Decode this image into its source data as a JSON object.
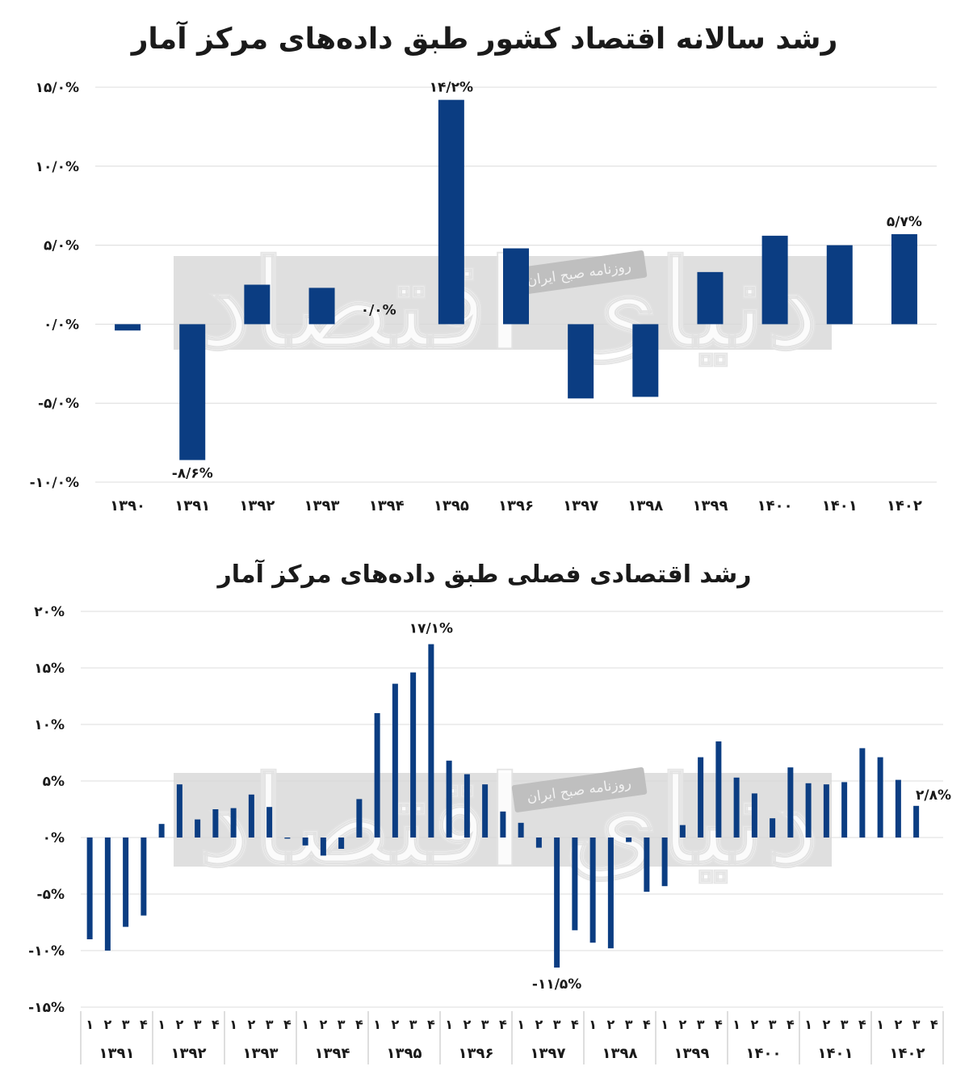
{
  "colors": {
    "bar": "#0b3d82",
    "grid": "#dcdcdc",
    "text": "#1a1a1a"
  },
  "watermark": {
    "logo_text": "دنیای اقتصاد",
    "tag_text": "روزنامه صبح ایران"
  },
  "chart_data": [
    {
      "type": "bar",
      "title": "رشد سالانه اقتصاد کشور طبق داده‌های مرکز آمار",
      "xlabel": "",
      "ylabel": "",
      "ylim": [
        -10,
        15
      ],
      "yticks": [
        15,
        10,
        5,
        0,
        -5,
        -10
      ],
      "ytick_labels": [
        "۱۵/۰%",
        "۱۰/۰%",
        "۵/۰%",
        "۰/۰%",
        "-۵/۰%",
        "-۱۰/۰%"
      ],
      "grid": true,
      "categories": [
        "۱۳۹۰",
        "۱۳۹۱",
        "۱۳۹۲",
        "۱۳۹۳",
        "۱۳۹۴",
        "۱۳۹۵",
        "۱۳۹۶",
        "۱۳۹۷",
        "۱۳۹۸",
        "۱۳۹۹",
        "۱۴۰۰",
        "۱۴۰۱",
        "۱۴۰۲"
      ],
      "values": [
        -0.4,
        -8.6,
        2.5,
        2.3,
        0.0,
        14.2,
        4.8,
        -4.7,
        -4.6,
        3.3,
        5.6,
        5.0,
        5.7
      ],
      "data_labels": [
        {
          "index": 1,
          "text": "-۸/۶%"
        },
        {
          "index": 4,
          "text": "۰/۰%"
        },
        {
          "index": 5,
          "text": "۱۴/۲%"
        },
        {
          "index": 12,
          "text": "۵/۷%"
        }
      ]
    },
    {
      "type": "bar",
      "title": "رشد اقتصادی فصلی طبق داده‌های مرکز آمار",
      "xlabel": "",
      "ylabel": "",
      "ylim": [
        -15,
        20
      ],
      "yticks": [
        20,
        15,
        10,
        5,
        0,
        -5,
        -10,
        -15
      ],
      "ytick_labels": [
        "۲۰%",
        "۱۵%",
        "۱۰%",
        "۵%",
        "۰%",
        "-۵%",
        "-۱۰%",
        "-۱۵%"
      ],
      "grid": true,
      "years": [
        "۱۳۹۱",
        "۱۳۹۲",
        "۱۳۹۳",
        "۱۳۹۴",
        "۱۳۹۵",
        "۱۳۹۶",
        "۱۳۹۷",
        "۱۳۹۸",
        "۱۳۹۹",
        "۱۴۰۰",
        "۱۴۰۱",
        "۱۴۰۲"
      ],
      "quarters": [
        "۱",
        "۲",
        "۳",
        "۴"
      ],
      "values": [
        -9.0,
        -10.0,
        -7.9,
        -6.9,
        1.2,
        4.7,
        1.6,
        2.5,
        2.6,
        3.8,
        2.7,
        -0.1,
        -0.7,
        -1.6,
        -1.0,
        3.4,
        11.0,
        13.6,
        14.6,
        17.1,
        6.8,
        5.6,
        4.7,
        2.3,
        1.3,
        -0.9,
        -11.5,
        -8.2,
        -9.3,
        -9.8,
        -0.4,
        -4.8,
        -4.3,
        1.1,
        7.1,
        8.5,
        5.3,
        3.9,
        1.7,
        6.2,
        4.8,
        4.7,
        4.9,
        7.9,
        7.1,
        5.1,
        2.8
      ],
      "data_labels": [
        {
          "index": 19,
          "text": "۱۷/۱%"
        },
        {
          "index": 26,
          "text": "-۱۱/۵%"
        },
        {
          "index": 46,
          "text": "۲/۸%"
        }
      ]
    }
  ]
}
